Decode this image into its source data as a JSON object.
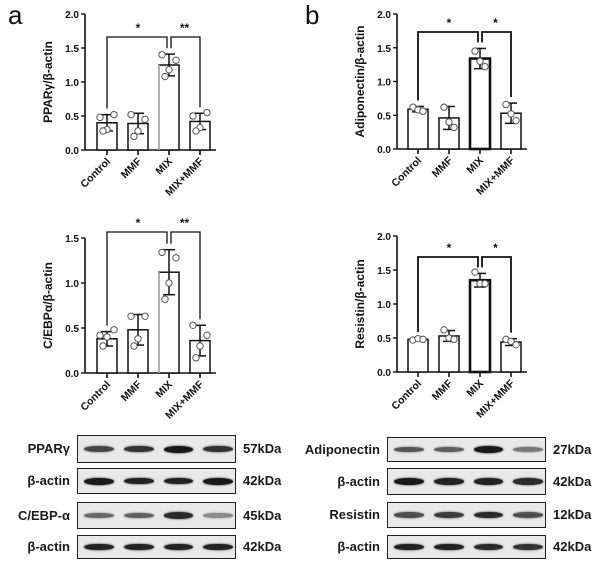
{
  "panels": {
    "a": {
      "letter": "a"
    },
    "b": {
      "letter": "b"
    }
  },
  "groups": [
    "Control",
    "MMF",
    "MIX",
    "MIX+MMF"
  ],
  "chart_data": [
    {
      "id": "pparg",
      "panel": "a",
      "type": "bar",
      "title": "",
      "xlabel": "",
      "ylabel": "PPARγ/β-actin",
      "categories": [
        "Control",
        "MMF",
        "MIX",
        "MIX+MMF"
      ],
      "values": [
        0.4,
        0.39,
        1.25,
        0.42
      ],
      "errors": [
        0.12,
        0.15,
        0.16,
        0.12
      ],
      "points": [
        [
          0.48,
          0.52,
          0.3,
          0.28
        ],
        [
          0.52,
          0.45,
          0.28,
          0.2
        ],
        [
          1.4,
          1.32,
          1.18,
          1.08
        ],
        [
          0.5,
          0.55,
          0.33,
          0.28
        ]
      ],
      "ylim": [
        0,
        2.0
      ],
      "yticks": [
        "0.0",
        "0.5",
        "1.0",
        "1.5",
        "2.0"
      ],
      "significance": [
        {
          "from": "Control",
          "to": "MIX",
          "label": "*"
        },
        {
          "from": "MIX",
          "to": "MIX+MMF",
          "label": "**"
        }
      ],
      "grid": false
    },
    {
      "id": "adiponectin",
      "panel": "b",
      "type": "bar",
      "title": "",
      "xlabel": "",
      "ylabel": "Adiponectin/β-actin",
      "categories": [
        "Control",
        "MMF",
        "MIX",
        "MIX+MMF"
      ],
      "values": [
        0.59,
        0.46,
        1.34,
        0.53
      ],
      "errors": [
        0.04,
        0.17,
        0.15,
        0.15
      ],
      "points": [
        [
          0.62,
          0.58,
          0.56
        ],
        [
          0.62,
          0.4,
          0.32
        ],
        [
          1.45,
          1.3,
          1.22
        ],
        [
          0.66,
          0.52,
          0.42
        ]
      ],
      "ylim": [
        0,
        2.0
      ],
      "yticks": [
        "0.0",
        "0.5",
        "1.0",
        "1.5",
        "2.0"
      ],
      "significance": [
        {
          "from": "Control",
          "to": "MIX",
          "label": "*"
        },
        {
          "from": "MIX",
          "to": "MIX+MMF",
          "label": "*"
        }
      ],
      "grid": false
    },
    {
      "id": "cebpa",
      "panel": "a",
      "type": "bar",
      "title": "",
      "xlabel": "",
      "ylabel": "C/EBPα/β-actin",
      "categories": [
        "Control",
        "MMF",
        "MIX",
        "MIX+MMF"
      ],
      "values": [
        0.38,
        0.48,
        1.12,
        0.36
      ],
      "errors": [
        0.08,
        0.17,
        0.25,
        0.17
      ],
      "points": [
        [
          0.42,
          0.48,
          0.4,
          0.3
        ],
        [
          0.63,
          0.63,
          0.38,
          0.3
        ],
        [
          1.34,
          1.28,
          1.0,
          0.82
        ],
        [
          0.53,
          0.42,
          0.3,
          0.17
        ]
      ],
      "ylim": [
        0,
        1.5
      ],
      "yticks": [
        "0.0",
        "0.5",
        "1.0",
        "1.5"
      ],
      "significance": [
        {
          "from": "Control",
          "to": "MIX",
          "label": "*"
        },
        {
          "from": "MIX",
          "to": "MIX+MMF",
          "label": "**"
        }
      ],
      "grid": false
    },
    {
      "id": "resistin",
      "panel": "b",
      "type": "bar",
      "title": "",
      "xlabel": "",
      "ylabel": "Resistin/β-actin",
      "categories": [
        "Control",
        "MMF",
        "MIX",
        "MIX+MMF"
      ],
      "values": [
        0.48,
        0.53,
        1.35,
        0.44
      ],
      "errors": [
        0.02,
        0.08,
        0.1,
        0.05
      ],
      "points": [
        [
          0.47,
          0.49,
          0.48
        ],
        [
          0.62,
          0.5,
          0.48
        ],
        [
          1.47,
          1.3,
          1.3
        ],
        [
          0.48,
          0.45,
          0.4
        ]
      ],
      "ylim": [
        0,
        2.0
      ],
      "yticks": [
        "0.0",
        "0.5",
        "1.0",
        "1.5",
        "2.0"
      ],
      "significance": [
        {
          "from": "Control",
          "to": "MIX",
          "label": "*"
        },
        {
          "from": "MIX",
          "to": "MIX+MMF",
          "label": "*"
        }
      ],
      "grid": false
    }
  ],
  "blots": {
    "left": [
      {
        "protein": "PPARγ",
        "kda": "57kDa",
        "intensity": [
          0.75,
          0.85,
          1.0,
          0.85
        ]
      },
      {
        "protein": "β-actin",
        "kda": "42kDa",
        "intensity": [
          1.0,
          0.95,
          0.95,
          1.0
        ]
      },
      {
        "protein": "C/EBP-α",
        "kda": "45kDa",
        "intensity": [
          0.55,
          0.6,
          0.9,
          0.35
        ]
      },
      {
        "protein": "β-actin",
        "kda": "42kDa",
        "intensity": [
          0.95,
          0.95,
          0.95,
          0.95
        ]
      }
    ],
    "right": [
      {
        "protein": "Adiponectin",
        "kda": "27kDa",
        "intensity": [
          0.65,
          0.6,
          1.0,
          0.45
        ]
      },
      {
        "protein": "β-actin",
        "kda": "42kDa",
        "intensity": [
          1.0,
          0.95,
          0.95,
          0.9
        ]
      },
      {
        "protein": "Resistin",
        "kda": "12kDa",
        "intensity": [
          0.7,
          0.8,
          0.9,
          0.7
        ]
      },
      {
        "protein": "β-actin",
        "kda": "42kDa",
        "intensity": [
          0.95,
          0.95,
          0.9,
          0.85
        ]
      }
    ]
  }
}
